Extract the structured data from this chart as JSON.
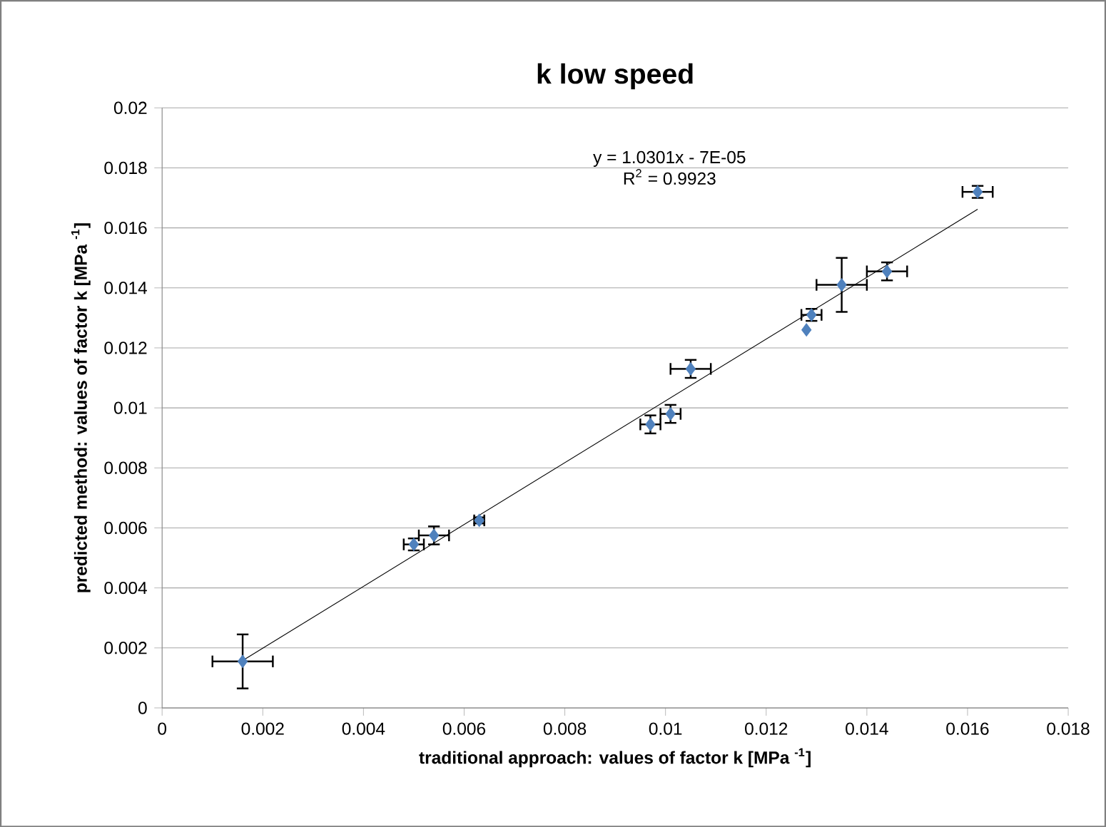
{
  "chart_data": {
    "type": "scatter",
    "title": "k low speed",
    "xlabel": "traditional approach: values of factor k [MPa $^{-1}$]",
    "ylabel": "predicted method: values of factor k [MPa $^{-1}$]",
    "annotations": [
      "y = 1.0301x - 7E-05",
      "R$^{2}$ = 0.9923"
    ],
    "xlim": [
      0,
      0.018
    ],
    "ylim": [
      0,
      0.02
    ],
    "xticks": [
      0,
      0.002,
      0.004,
      0.006,
      0.008,
      0.01,
      0.012,
      0.014,
      0.016,
      0.018
    ],
    "yticks": [
      0,
      0.002,
      0.004,
      0.006,
      0.008,
      0.01,
      0.012,
      0.014,
      0.016,
      0.018,
      0.02
    ],
    "grid": "y",
    "series": [
      {
        "color": "#4f81bd",
        "marker": "diamond",
        "x": [
          0.0016,
          0.005,
          0.0054,
          0.0063,
          0.0097,
          0.0101,
          0.0105,
          0.0128,
          0.0129,
          0.0135,
          0.0144,
          0.0162
        ],
        "values": [
          0.00155,
          0.00545,
          0.00575,
          0.00625,
          0.00945,
          0.0098,
          0.0113,
          0.0126,
          0.0131,
          0.0141,
          0.01455,
          0.0172
        ],
        "xerrors": [
          0.0006,
          0.0002,
          0.0003,
          0.0001,
          0.0002,
          0.0002,
          0.0004,
          null,
          0.0002,
          0.0005,
          0.0004,
          0.0003
        ],
        "errors": [
          0.0009,
          0.0002,
          0.0003,
          0.0001,
          0.0003,
          0.0003,
          0.0003,
          null,
          0.0002,
          0.0009,
          0.0003,
          0.0002
        ]
      },
      {
        "type": "line",
        "marker": "none",
        "color": "#000000",
        "x": [
          0.0016,
          0.0162
        ],
        "values": [
          0.00158,
          0.01662
        ]
      }
    ]
  }
}
